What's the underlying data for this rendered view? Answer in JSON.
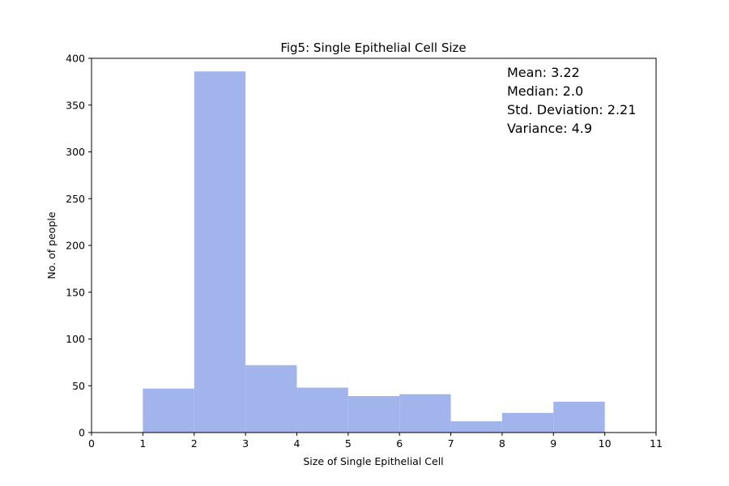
{
  "chart_data": {
    "type": "bar",
    "title": "Fig5: Single Epithelial Cell Size",
    "xlabel": "Size of Single Epithelial Cell",
    "ylabel": "No. of people",
    "xlim": [
      0,
      11
    ],
    "ylim": [
      0,
      400
    ],
    "xticks": [
      0,
      1,
      2,
      3,
      4,
      5,
      6,
      7,
      8,
      9,
      10,
      11
    ],
    "yticks": [
      0,
      50,
      100,
      150,
      200,
      250,
      300,
      350,
      400
    ],
    "bar_color": "#a1b4ec",
    "bins": [
      {
        "start": 1,
        "end": 2,
        "value": 47
      },
      {
        "start": 2,
        "end": 3,
        "value": 386
      },
      {
        "start": 3,
        "end": 4,
        "value": 72
      },
      {
        "start": 4,
        "end": 5,
        "value": 48
      },
      {
        "start": 5,
        "end": 6,
        "value": 39
      },
      {
        "start": 6,
        "end": 7,
        "value": 41
      },
      {
        "start": 7,
        "end": 8,
        "value": 12
      },
      {
        "start": 8,
        "end": 9,
        "value": 21
      },
      {
        "start": 9,
        "end": 10,
        "value": 33
      }
    ],
    "annotations": [
      "Mean: 3.22",
      "Median: 2.0",
      "Std. Deviation: 2.21",
      "Variance: 4.9"
    ],
    "grid": false,
    "legend": "none"
  }
}
